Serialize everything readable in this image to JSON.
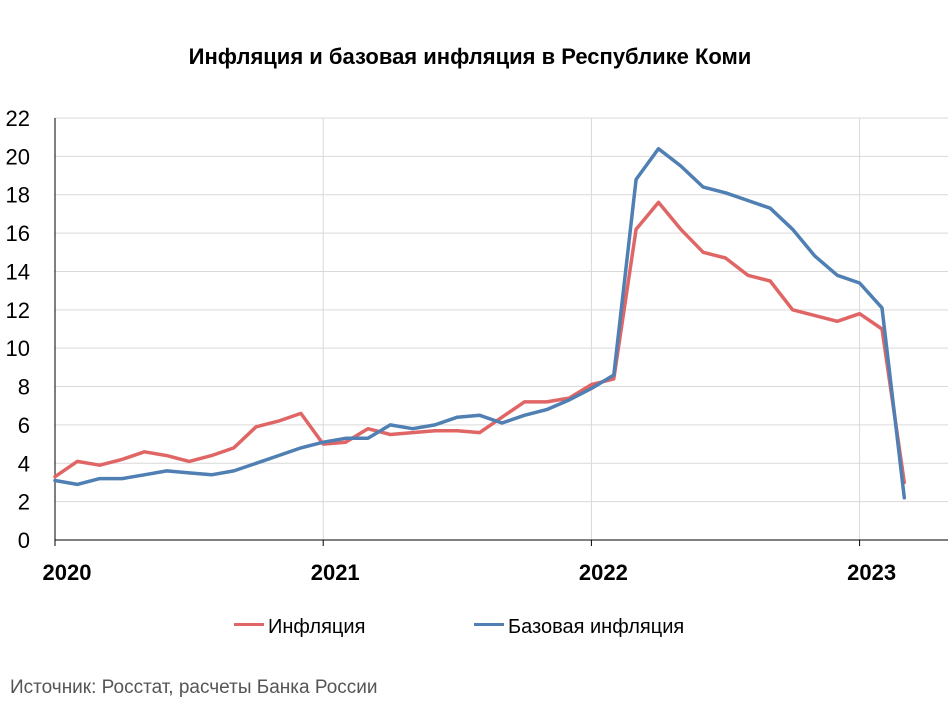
{
  "chart_data": {
    "type": "line",
    "title": "Инфляция и базовая инфляция в Республике Коми",
    "source": "Источник: Росстат, расчеты Банка России",
    "xlabel": "",
    "ylabel": "",
    "ylim": [
      0,
      22
    ],
    "yticks": [
      "0",
      "2",
      "4",
      "6",
      "8",
      "10",
      "12",
      "14",
      "16",
      "18",
      "20",
      "22"
    ],
    "xticks": [
      "2020",
      "2021",
      "2022",
      "2023"
    ],
    "x_range": [
      "2020-01",
      "2023-04"
    ],
    "grid": true,
    "legend_position": "bottom",
    "x": [
      "2020-01",
      "2020-02",
      "2020-03",
      "2020-04",
      "2020-05",
      "2020-06",
      "2020-07",
      "2020-08",
      "2020-09",
      "2020-10",
      "2020-11",
      "2020-12",
      "2021-01",
      "2021-02",
      "2021-03",
      "2021-04",
      "2021-05",
      "2021-06",
      "2021-07",
      "2021-08",
      "2021-09",
      "2021-10",
      "2021-11",
      "2021-12",
      "2022-01",
      "2022-02",
      "2022-03",
      "2022-04",
      "2022-05",
      "2022-06",
      "2022-07",
      "2022-08",
      "2022-09",
      "2022-10",
      "2022-11",
      "2022-12",
      "2023-01",
      "2023-02",
      "2023-03"
    ],
    "series": [
      {
        "name": "Инфляция",
        "color": "#e06666",
        "values": [
          3.3,
          4.1,
          3.9,
          4.2,
          4.6,
          4.4,
          4.1,
          4.4,
          4.8,
          5.9,
          6.2,
          6.6,
          5.0,
          5.1,
          5.8,
          5.5,
          5.6,
          5.7,
          5.7,
          5.6,
          6.4,
          7.2,
          7.2,
          7.4,
          8.1,
          8.4,
          16.2,
          17.6,
          16.2,
          15.0,
          14.7,
          13.8,
          13.5,
          12.0,
          11.7,
          11.4,
          11.8,
          11.0,
          3.0
        ]
      },
      {
        "name": "Базовая инфляция",
        "color": "#4f7fb3",
        "values": [
          3.1,
          2.9,
          3.2,
          3.2,
          3.4,
          3.6,
          3.5,
          3.4,
          3.6,
          4.0,
          4.4,
          4.8,
          5.1,
          5.3,
          5.3,
          6.0,
          5.8,
          6.0,
          6.4,
          6.5,
          6.1,
          6.5,
          6.8,
          7.3,
          7.9,
          8.6,
          18.8,
          20.4,
          19.5,
          18.4,
          18.1,
          17.7,
          17.3,
          16.2,
          14.8,
          13.8,
          13.4,
          12.1,
          2.2
        ]
      }
    ]
  }
}
